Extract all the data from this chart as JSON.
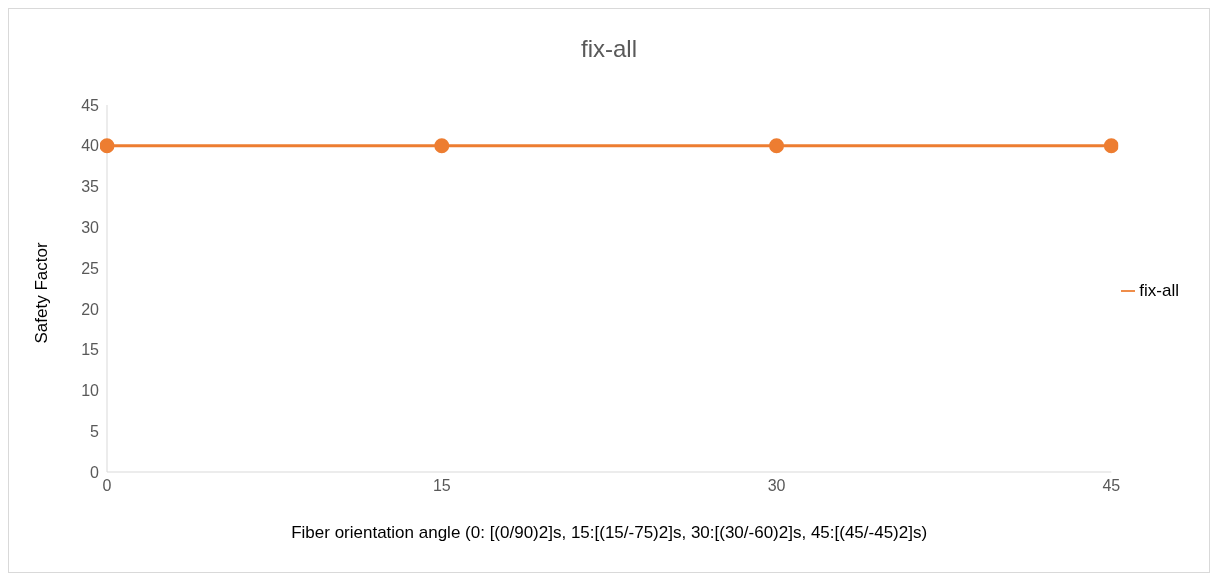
{
  "chart_data": {
    "type": "line",
    "title": "fix-all",
    "xlabel": "Fiber orientation angle (0: [(0/90)2]s, 15:[(15/-75)2]s, 30:[(30/-60)2]s, 45:[(45/-45)2]s)",
    "ylabel": "Safety Factor",
    "x": [
      0,
      15,
      30,
      45
    ],
    "series": [
      {
        "name": "fix-all",
        "color": "#ed7d31",
        "values": [
          40,
          40,
          40,
          40
        ]
      }
    ],
    "xlim": [
      0,
      45
    ],
    "xticks": [
      0,
      15,
      30,
      45
    ],
    "ylim": [
      0,
      45
    ],
    "yticks": [
      0,
      5,
      10,
      15,
      20,
      25,
      30,
      35,
      40,
      45
    ],
    "grid": false,
    "legend": "right",
    "marker": "circle",
    "line_style": "solid"
  }
}
